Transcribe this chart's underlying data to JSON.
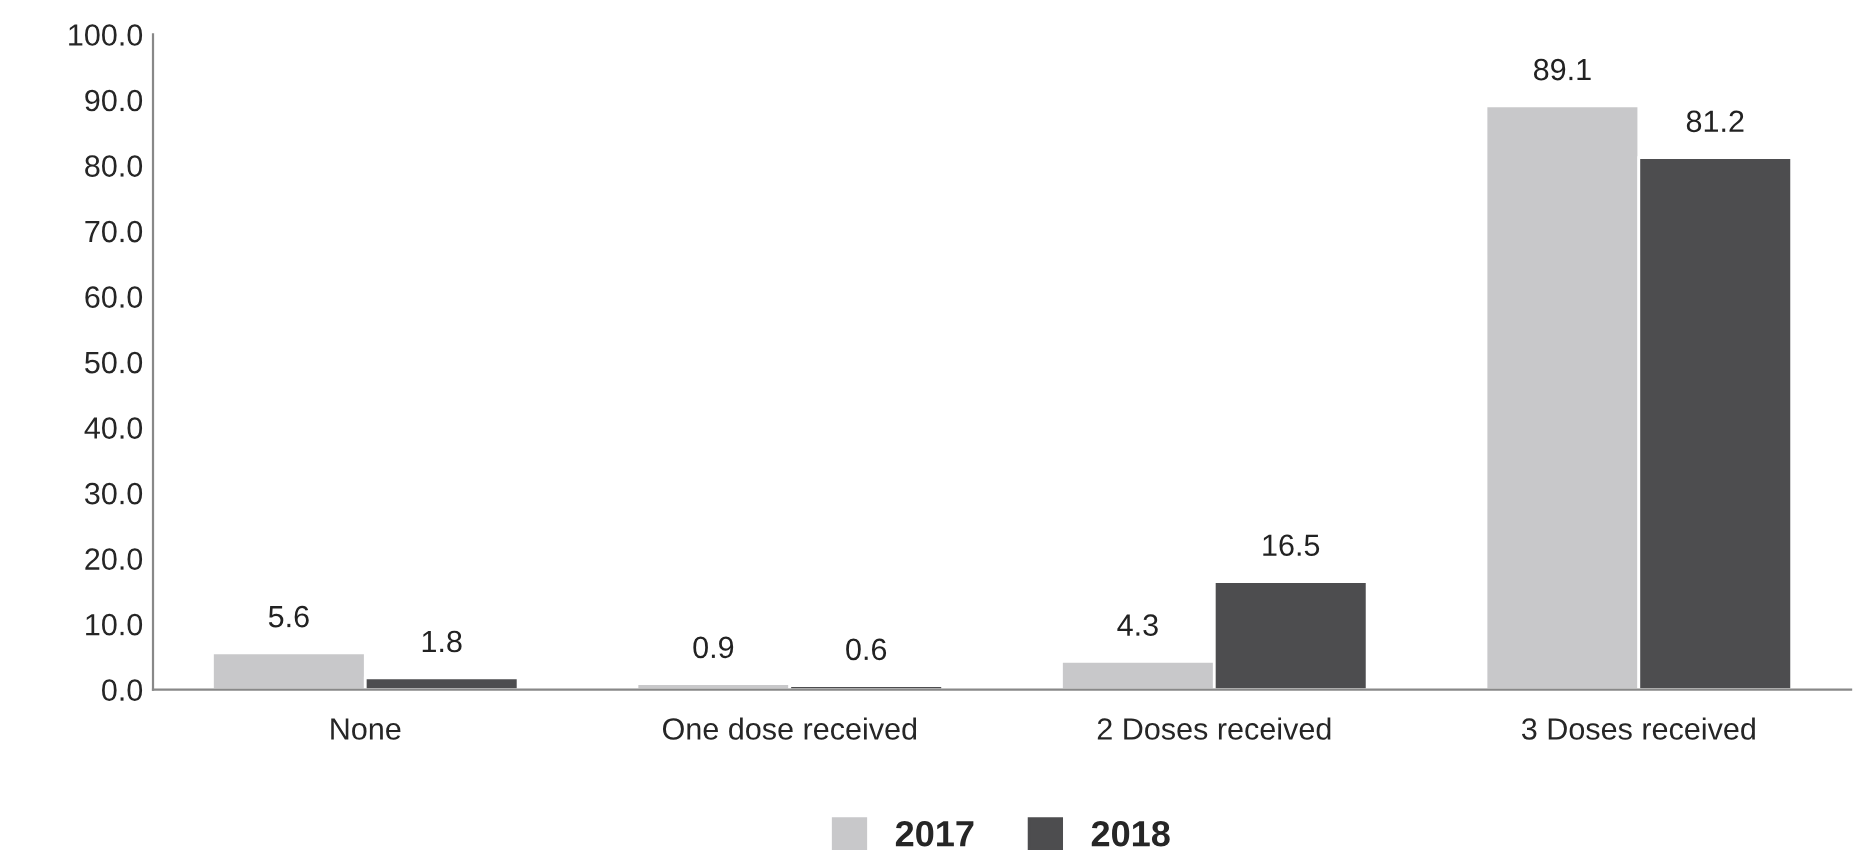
{
  "chart_data": {
    "type": "bar",
    "categories": [
      "None",
      "One dose received",
      "2 Doses received",
      "3 Doses received"
    ],
    "series": [
      {
        "name": "2017",
        "color": "#c8c8ca",
        "values": [
          5.6,
          0.9,
          4.3,
          89.1
        ]
      },
      {
        "name": "2018",
        "color": "#4d4d4f",
        "values": [
          1.8,
          0.6,
          16.5,
          81.2
        ]
      }
    ],
    "ylim": [
      0,
      100
    ],
    "yticks": [
      {
        "value": 0,
        "label": "0.0"
      },
      {
        "value": 10,
        "label": "10.0"
      },
      {
        "value": 20,
        "label": "20.0"
      },
      {
        "value": 30,
        "label": "30.0"
      },
      {
        "value": 40,
        "label": "40.0"
      },
      {
        "value": 50,
        "label": "50.0"
      },
      {
        "value": 60,
        "label": "60.0"
      },
      {
        "value": 70,
        "label": "70.0"
      },
      {
        "value": 80,
        "label": "80.0"
      },
      {
        "value": 90,
        "label": "90.0"
      },
      {
        "value": 100,
        "label": "100.0"
      }
    ],
    "grid": false,
    "legend": "bottom",
    "data_labels": true
  }
}
